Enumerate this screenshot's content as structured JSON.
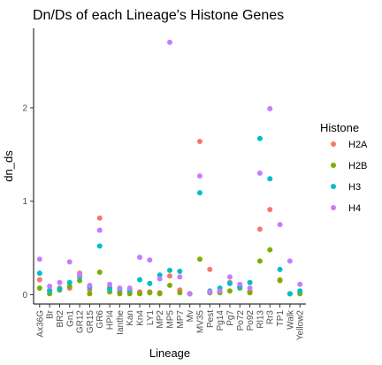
{
  "chart_data": {
    "type": "scatter",
    "title": "Dn/Ds of each Lineage's Histone Genes",
    "xlabel": "Lineage",
    "ylabel": "dn_ds",
    "ylim": [
      -0.1,
      2.85
    ],
    "yticks": [
      0,
      1,
      2
    ],
    "grid": false,
    "legend": {
      "title": "Histone",
      "position": "right"
    },
    "categories": [
      "Ax36G",
      "Br",
      "BR2",
      "Gn1",
      "GR12",
      "GR15",
      "GR6",
      "HPI4",
      "Ianthe",
      "Kan",
      "Kn4",
      "LY1",
      "MP2",
      "MP5",
      "MP7",
      "Mv",
      "MV35",
      "Pest",
      "Pg14",
      "Pg7",
      "Po72",
      "Po92",
      "Rl13",
      "Rr3",
      "TP1",
      "Walk",
      "Yellow2"
    ],
    "series": [
      {
        "name": "H2A",
        "color": "#F8766D",
        "values": [
          0.16,
          0.05,
          0.07,
          0.07,
          0.23,
          0.05,
          0.82,
          0.08,
          0.03,
          0.03,
          0.03,
          0.03,
          0.02,
          0.2,
          0.05,
          0.01,
          1.64,
          0.27,
          0.04,
          0.13,
          0.09,
          0.04,
          0.7,
          0.91,
          0.16,
          0.01,
          0.03
        ]
      },
      {
        "name": "H2B",
        "color": "#7CAE00",
        "values": [
          0.07,
          0.01,
          0.05,
          0.09,
          0.15,
          0.01,
          0.24,
          0.03,
          0.01,
          0.01,
          0.01,
          0.02,
          0.01,
          0.1,
          0.02,
          0.01,
          0.38,
          0.02,
          0.02,
          0.04,
          0.07,
          0.02,
          0.36,
          0.48,
          0.15,
          0.01,
          0.01
        ]
      },
      {
        "name": "H3",
        "color": "#00BFC4",
        "values": [
          0.23,
          0.04,
          0.06,
          0.13,
          0.19,
          0.08,
          0.52,
          0.06,
          0.06,
          0.05,
          0.16,
          0.12,
          0.21,
          0.26,
          0.25,
          0.01,
          1.09,
          0.04,
          0.07,
          0.12,
          0.08,
          0.13,
          1.67,
          1.24,
          0.27,
          0.01,
          0.04
        ]
      },
      {
        "name": "H4",
        "color": "#C77CFF",
        "values": [
          0.38,
          0.09,
          0.13,
          0.35,
          0.21,
          0.1,
          0.69,
          0.11,
          0.07,
          0.07,
          0.4,
          0.37,
          0.17,
          2.7,
          0.19,
          0.01,
          1.27,
          0.03,
          0.04,
          0.19,
          0.11,
          0.07,
          1.3,
          1.99,
          0.75,
          0.36,
          0.11
        ]
      }
    ]
  }
}
